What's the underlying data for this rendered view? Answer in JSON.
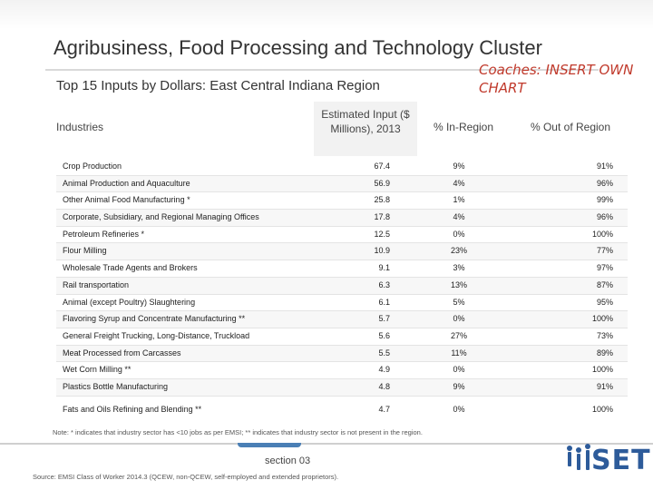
{
  "slide": {
    "title": "Agribusiness, Food Processing and Technology Cluster",
    "subtitle": "Top 15 Inputs by Dollars: East Central Indiana Region",
    "coaches_note": "Coaches: INSERT OWN CHART"
  },
  "table": {
    "headers": {
      "industries": "Industries",
      "input": "Estimated Input ($ Millions), 2013",
      "in_region": "% In-Region",
      "out_region": "% Out of Region"
    },
    "rows": [
      {
        "name": "Crop Production",
        "value": "67.4",
        "in": "9%",
        "out": "91%"
      },
      {
        "name": "Animal Production and Aquaculture",
        "value": "56.9",
        "in": "4%",
        "out": "96%"
      },
      {
        "name": "Other Animal Food Manufacturing *",
        "value": "25.8",
        "in": "1%",
        "out": "99%"
      },
      {
        "name": "Corporate, Subsidiary, and Regional Managing Offices",
        "value": "17.8",
        "in": "4%",
        "out": "96%"
      },
      {
        "name": "Petroleum Refineries *",
        "value": "12.5",
        "in": "0%",
        "out": "100%"
      },
      {
        "name": "Flour Milling",
        "value": "10.9",
        "in": "23%",
        "out": "77%"
      },
      {
        "name": "Wholesale Trade Agents and Brokers",
        "value": "9.1",
        "in": "3%",
        "out": "97%"
      },
      {
        "name": "Rail transportation",
        "value": "6.3",
        "in": "13%",
        "out": "87%"
      },
      {
        "name": "Animal (except Poultry) Slaughtering",
        "value": "6.1",
        "in": "5%",
        "out": "95%"
      },
      {
        "name": "Flavoring Syrup and Concentrate Manufacturing **",
        "value": "5.7",
        "in": "0%",
        "out": "100%"
      },
      {
        "name": "General Freight Trucking, Long-Distance, Truckload",
        "value": "5.6",
        "in": "27%",
        "out": "73%"
      },
      {
        "name": "Meat Processed from Carcasses",
        "value": "5.5",
        "in": "11%",
        "out": "89%"
      },
      {
        "name": "Wet Corn Milling **",
        "value": "4.9",
        "in": "0%",
        "out": "100%"
      },
      {
        "name": "Plastics Bottle Manufacturing",
        "value": "4.8",
        "in": "9%",
        "out": "91%"
      },
      {
        "name": "Fats and Oils Refining and Blending **",
        "value": "4.7",
        "in": "0%",
        "out": "100%"
      }
    ]
  },
  "footer": {
    "note": "Note: * indicates that industry sector has <10 jobs as per EMSI; ** indicates that industry sector is not present in the region.",
    "section": "section 03",
    "source": "Source: EMSI Class of Worker 2014.3 (QCEW, non-QCEW, self-employed and extended proprietors).",
    "logo_text": "SET"
  },
  "colors": {
    "accent": "#4a7fb5",
    "coaches_note": "#c0392b",
    "logo": "#2d5b9a"
  }
}
